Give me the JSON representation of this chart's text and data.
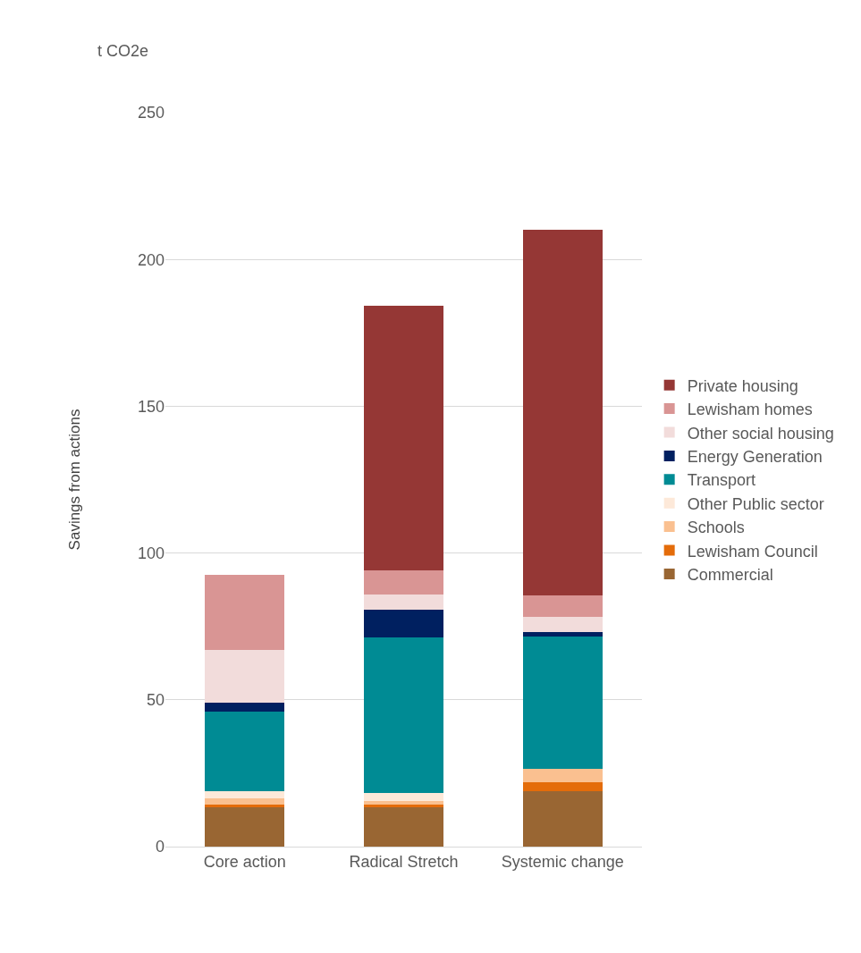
{
  "chart_data": {
    "type": "bar",
    "stacked": true,
    "ylabel": "Savings from actions",
    "annotations": [
      "t CO2e"
    ],
    "categories": [
      "Core action",
      "Radical Stretch",
      "Systemic change"
    ],
    "series": [
      {
        "name": "Commercial",
        "color": "#996633",
        "values": [
          13.3,
          13.3,
          18.8
        ]
      },
      {
        "name": "Lewisham Council",
        "color": "#e46c0a",
        "values": [
          1.0,
          1.1,
          3.0
        ]
      },
      {
        "name": "Schools",
        "color": "#fac090",
        "values": [
          2.1,
          1.2,
          4.6
        ]
      },
      {
        "name": "Other Public sector",
        "color": "#fde9d9",
        "values": [
          2.5,
          2.6,
          null
        ]
      },
      {
        "name": "Transport",
        "color": "#008b94",
        "values": [
          27.1,
          53.0,
          45.2
        ]
      },
      {
        "name": "Energy Generation",
        "color": "#002060",
        "values": [
          3.1,
          9.6,
          1.4
        ]
      },
      {
        "name": "Other social housing",
        "color": "#f2dcdb",
        "values": [
          17.8,
          5.2,
          5.3
        ]
      },
      {
        "name": "Lewisham homes",
        "color": "#d99594",
        "values": [
          25.6,
          8.1,
          7.4
        ]
      },
      {
        "name": "Private housing",
        "color": "#953735",
        "values": [
          null,
          90.0,
          124.5
        ]
      }
    ],
    "ylim": [
      0,
      250
    ],
    "yticks": [
      0,
      50,
      100,
      150,
      200,
      250
    ],
    "grid": "y",
    "legend": "right"
  }
}
